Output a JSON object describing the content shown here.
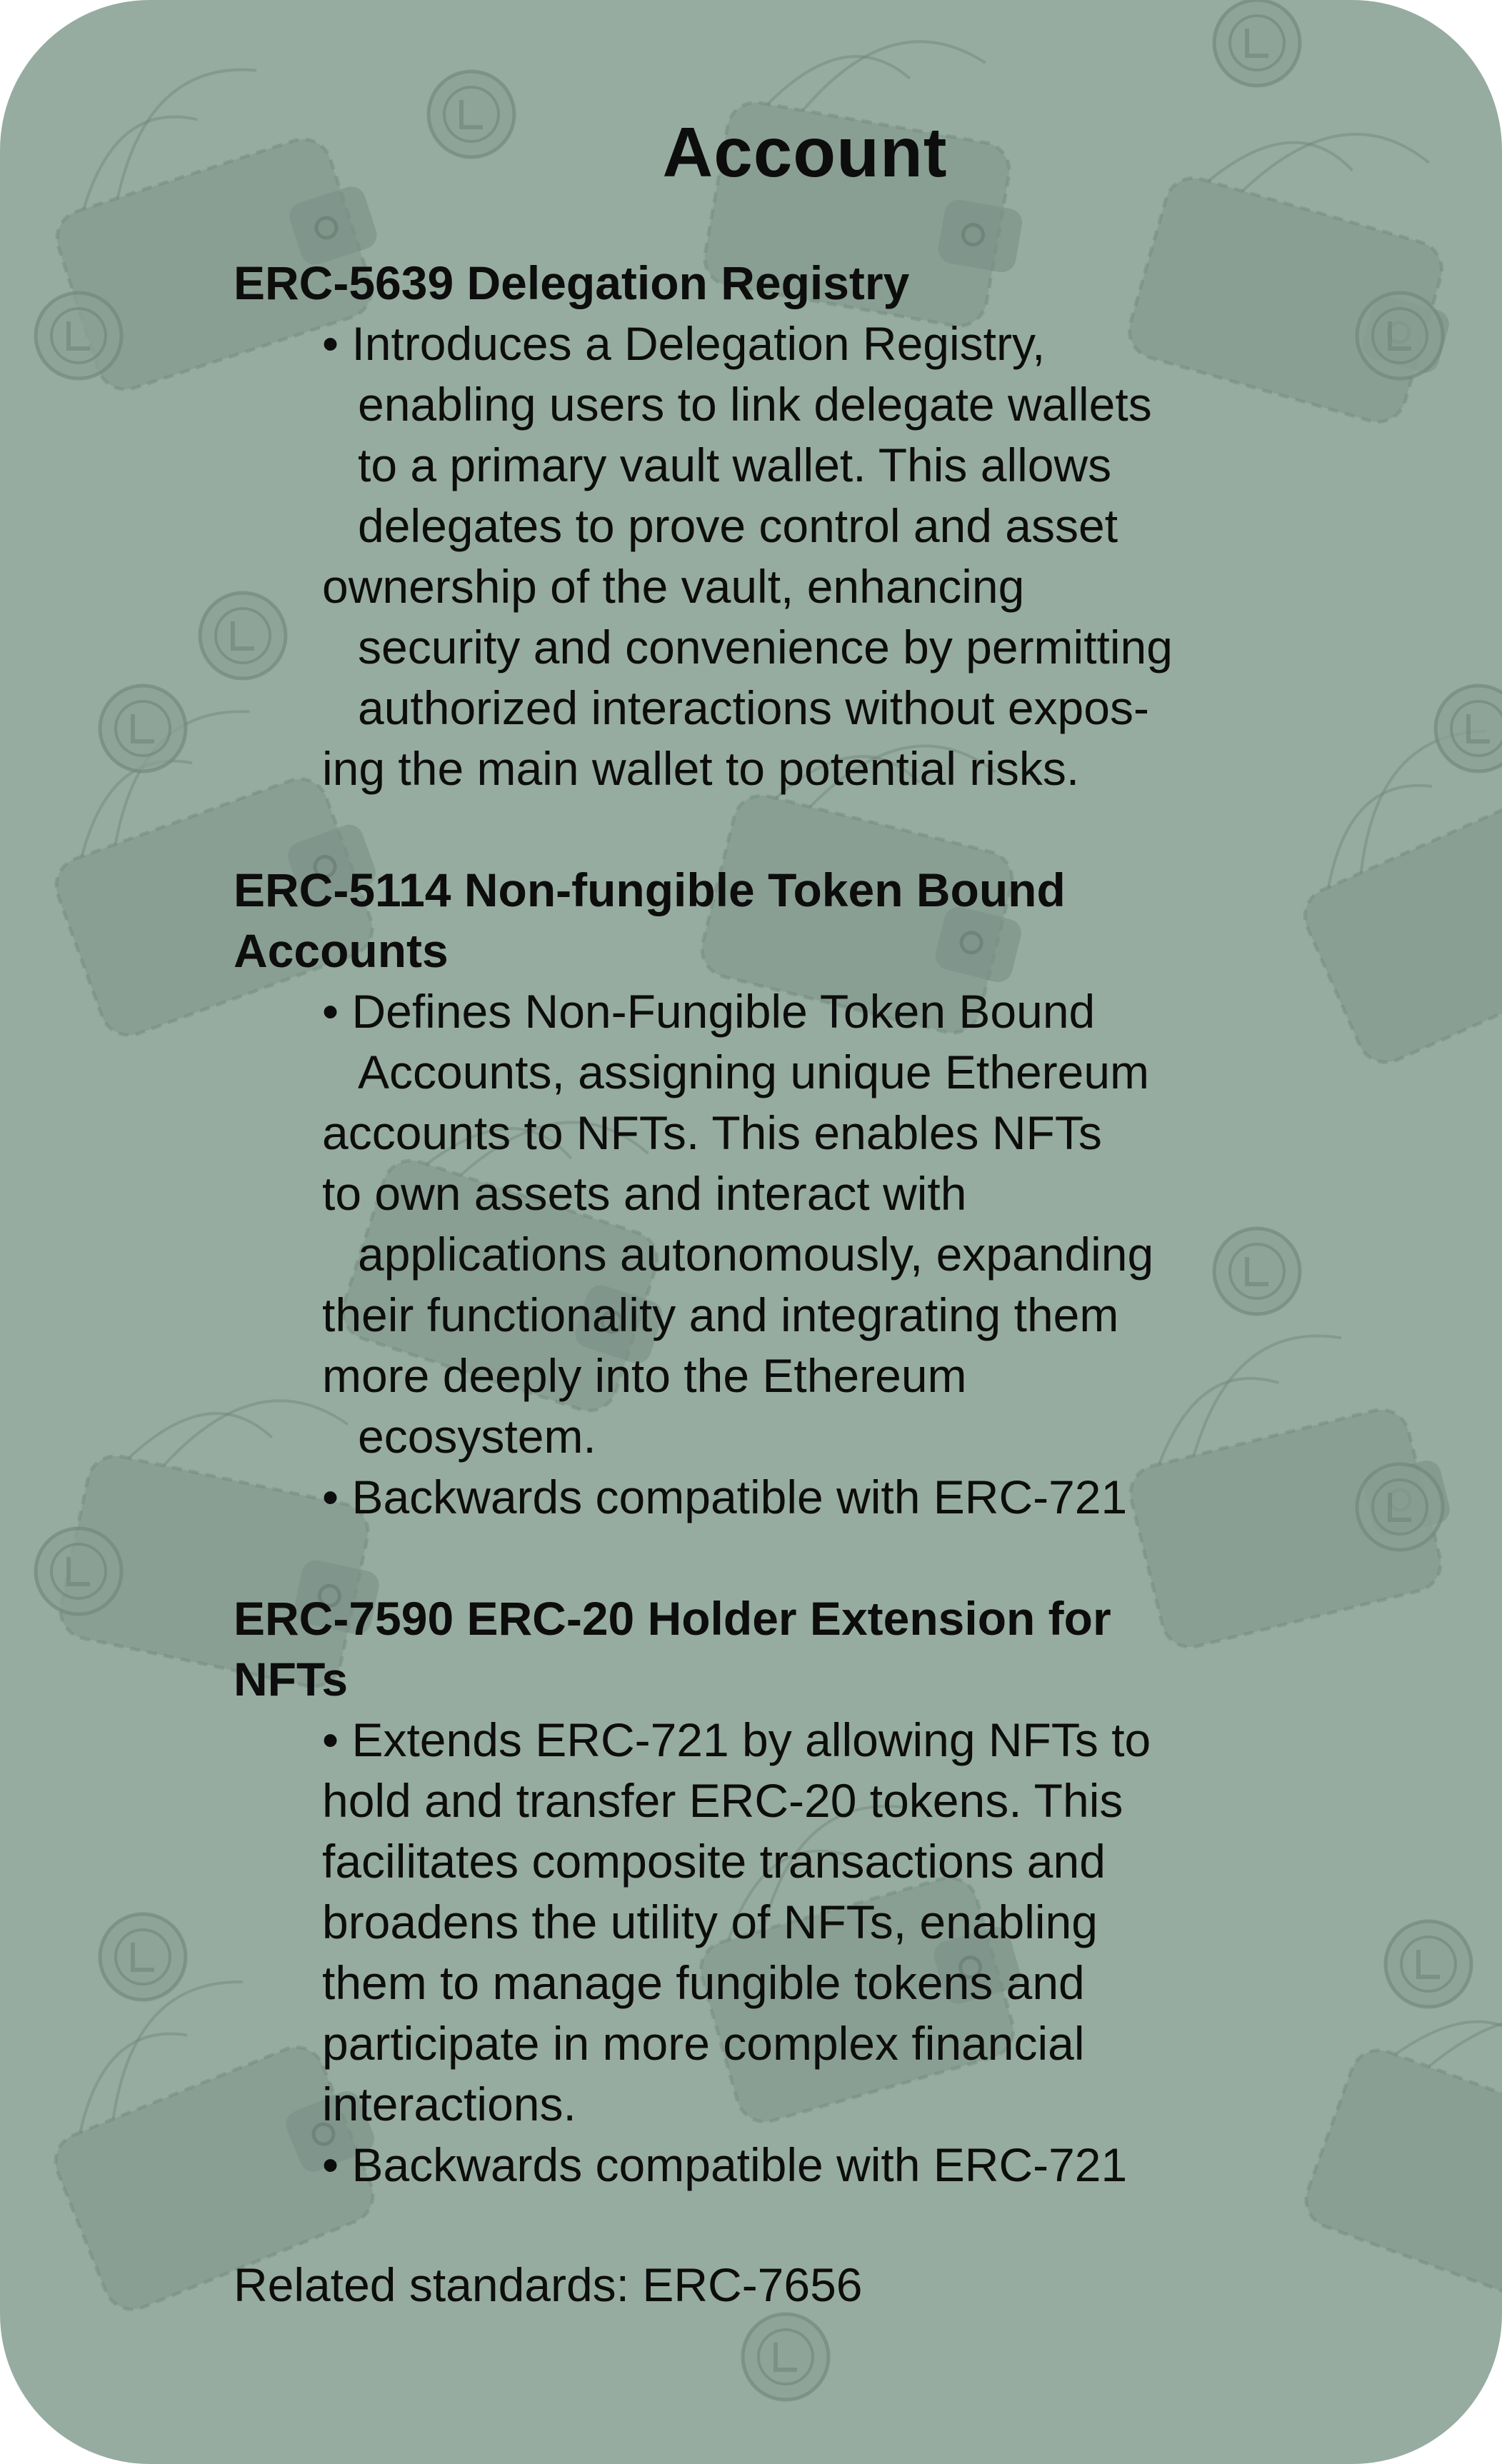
{
  "card": {
    "title": "Account",
    "background_color": "#97aca0",
    "pattern_icons": [
      "wallet-icon",
      "coin-icon"
    ]
  },
  "sections": [
    {
      "heading": "ERC-5639 Delegation Registry",
      "lines": [
        "• Introduces a Delegation Registry,",
        "enabling users to link delegate wallets",
        "to a primary vault wallet. This allows",
        "delegates to prove control and asset",
        "ownership of the vault, enhancing",
        "security and convenience by permitting",
        "authorized interactions without expos-",
        "ing the main wallet to potential risks."
      ]
    },
    {
      "heading_line1": "ERC-5114 Non-fungible Token Bound",
      "heading_line2": "Accounts",
      "lines": [
        "• Defines Non-Fungible Token Bound",
        "Accounts, assigning unique Ethereum",
        "accounts to NFTs. This enables NFTs",
        "to own assets and interact with",
        "applications autonomously, expanding",
        "their functionality and integrating them",
        "more deeply into the Ethereum",
        "ecosystem.",
        "• Backwards compatible with ERC-721"
      ]
    },
    {
      "heading_line1": "ERC-7590 ERC-20 Holder Extension for",
      "heading_line2": "NFTs",
      "lines": [
        "• Extends ERC-721 by allowing NFTs to",
        "hold and transfer ERC-20 tokens. This",
        "facilitates composite transactions and",
        "broadens the utility of NFTs, enabling",
        "them to manage fungible tokens and",
        "participate in more complex financial",
        "interactions.",
        "• Backwards compatible with ERC-721"
      ]
    }
  ],
  "related": "Related standards: ERC-7656"
}
